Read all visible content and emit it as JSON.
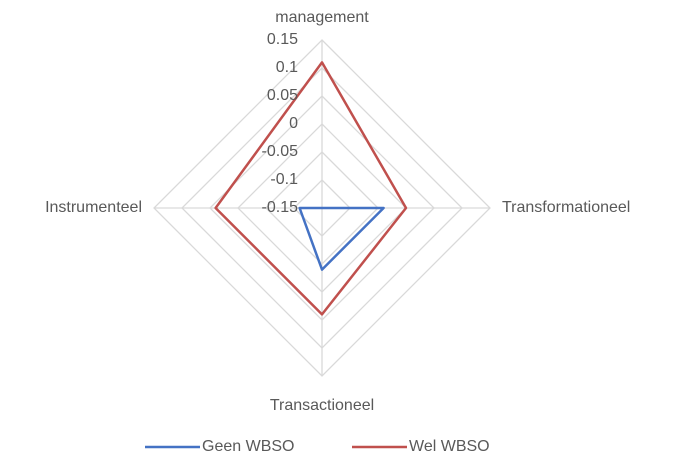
{
  "chart_data": {
    "type": "radar",
    "categories": [
      "management",
      "Transformationeel",
      "Transactioneel",
      "Instrumenteel"
    ],
    "series": [
      {
        "name": "Geen WBSO",
        "color": "#4472c4",
        "values": [
          -0.15,
          -0.04,
          -0.04,
          -0.11
        ]
      },
      {
        "name": "Wel WBSO",
        "color": "#c0504d",
        "values": [
          0.11,
          0.0,
          0.04,
          0.04
        ]
      }
    ],
    "ylim": [
      -0.15,
      0.15
    ],
    "yticks": [
      -0.15,
      -0.1,
      -0.05,
      0,
      0.05,
      0.1,
      0.15
    ],
    "grid": true,
    "legend": "bottom"
  }
}
